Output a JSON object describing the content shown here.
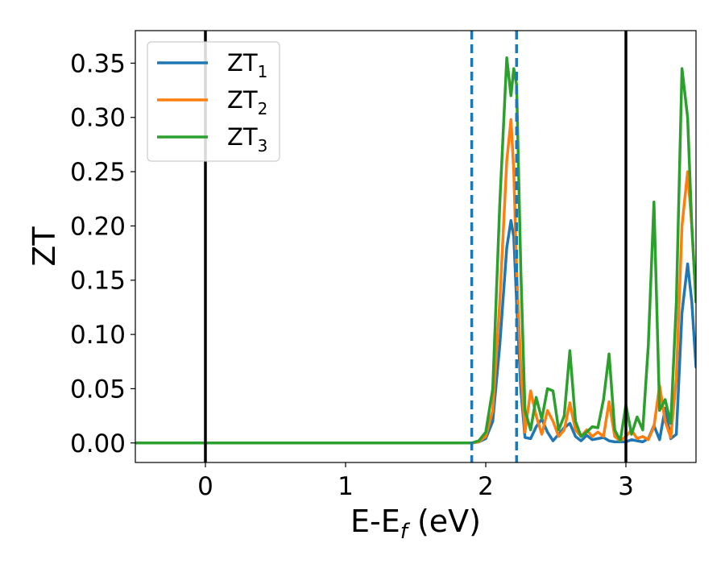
{
  "chart_data": {
    "type": "line",
    "title": "",
    "xlabel": "E-E_f (eV)",
    "xlabel_main": "E-E",
    "xlabel_sub": "f",
    "xlabel_tail": " (eV)",
    "ylabel": "ZT",
    "xlim": [
      -0.5,
      3.5
    ],
    "ylim": [
      -0.018,
      0.38
    ],
    "xticks": [
      0,
      1,
      2,
      3
    ],
    "xtick_labels": [
      "0",
      "1",
      "2",
      "3"
    ],
    "yticks": [
      0.0,
      0.05,
      0.1,
      0.15,
      0.2,
      0.25,
      0.3,
      0.35
    ],
    "ytick_labels": [
      "0.00",
      "0.05",
      "0.10",
      "0.15",
      "0.20",
      "0.25",
      "0.30",
      "0.35"
    ],
    "grid": false,
    "legend_position": "top-left",
    "vertical_lines": [
      {
        "x": 0.0,
        "style": "solid",
        "color": "#000000"
      },
      {
        "x": 3.0,
        "style": "solid",
        "color": "#000000"
      },
      {
        "x": 1.9,
        "style": "dashed",
        "color": "#1f77b4"
      },
      {
        "x": 2.22,
        "style": "dashed",
        "color": "#1f77b4"
      }
    ],
    "x": [
      -0.5,
      1.85,
      1.9,
      1.95,
      2.0,
      2.05,
      2.1,
      2.15,
      2.18,
      2.2,
      2.22,
      2.25,
      2.28,
      2.32,
      2.36,
      2.4,
      2.44,
      2.48,
      2.52,
      2.56,
      2.6,
      2.64,
      2.68,
      2.72,
      2.76,
      2.8,
      2.84,
      2.88,
      2.92,
      2.96,
      3.0,
      3.04,
      3.08,
      3.12,
      3.16,
      3.2,
      3.24,
      3.28,
      3.32,
      3.36,
      3.4,
      3.44,
      3.47,
      3.5
    ],
    "series": [
      {
        "name": "ZT",
        "name_sub": "1",
        "color": "#1f77b4",
        "values": [
          0.0,
          0.0,
          0.0,
          0.001,
          0.004,
          0.02,
          0.09,
          0.18,
          0.205,
          0.19,
          0.13,
          0.05,
          0.005,
          0.004,
          0.015,
          0.022,
          0.01,
          0.002,
          0.008,
          0.014,
          0.018,
          0.006,
          0.002,
          0.007,
          0.003,
          0.004,
          0.005,
          0.002,
          0.001,
          0.001,
          0.001,
          0.003,
          0.002,
          0.001,
          0.004,
          0.016,
          0.003,
          0.032,
          0.004,
          0.008,
          0.12,
          0.165,
          0.13,
          0.07
        ]
      },
      {
        "name": "ZT",
        "name_sub": "2",
        "color": "#ff7f0e",
        "values": [
          0.0,
          0.0,
          0.0,
          0.001,
          0.006,
          0.03,
          0.13,
          0.26,
          0.298,
          0.25,
          0.16,
          0.07,
          0.01,
          0.048,
          0.025,
          0.008,
          0.03,
          0.02,
          0.006,
          0.012,
          0.037,
          0.012,
          0.006,
          0.012,
          0.006,
          0.01,
          0.006,
          0.038,
          0.006,
          0.002,
          0.006,
          0.012,
          0.004,
          0.006,
          0.003,
          0.015,
          0.053,
          0.02,
          0.005,
          0.06,
          0.2,
          0.25,
          0.2,
          0.13
        ]
      },
      {
        "name": "ZT",
        "name_sub": "3",
        "color": "#2ca02c",
        "values": [
          0.0,
          0.0,
          0.0,
          0.002,
          0.01,
          0.05,
          0.22,
          0.355,
          0.32,
          0.345,
          0.33,
          0.16,
          0.03,
          0.012,
          0.042,
          0.022,
          0.05,
          0.048,
          0.012,
          0.025,
          0.085,
          0.02,
          0.006,
          0.01,
          0.015,
          0.014,
          0.04,
          0.082,
          0.012,
          0.002,
          0.035,
          0.008,
          0.024,
          0.012,
          0.09,
          0.222,
          0.03,
          0.04,
          0.018,
          0.13,
          0.345,
          0.3,
          0.2,
          0.13
        ]
      }
    ]
  }
}
